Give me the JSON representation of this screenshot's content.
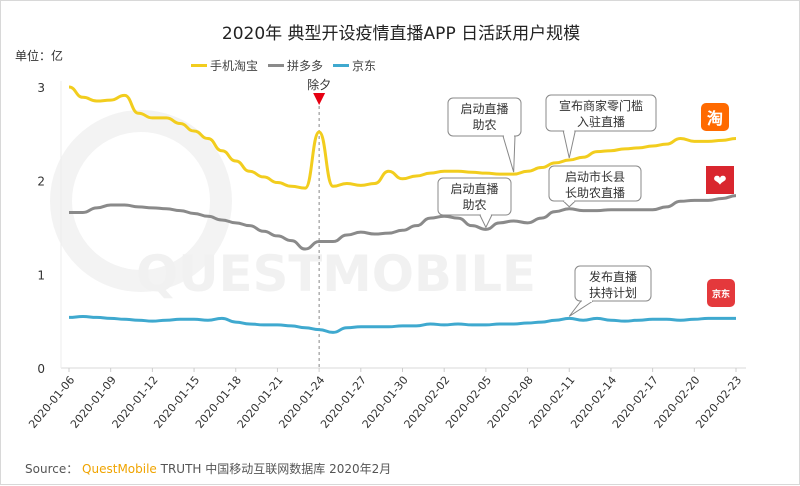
{
  "chart_data": {
    "type": "line",
    "title": "2020年 典型开设疫情直播APP 日活跃用户规模",
    "unit_label": "单位：亿",
    "ylim": [
      0,
      3
    ],
    "yticks": [
      0,
      1,
      2,
      3
    ],
    "grid": false,
    "legend_placement": "top",
    "x_start": "2020-01-06",
    "x": [
      "2020-01-06",
      "2020-01-07",
      "2020-01-08",
      "2020-01-09",
      "2020-01-10",
      "2020-01-11",
      "2020-01-12",
      "2020-01-13",
      "2020-01-14",
      "2020-01-15",
      "2020-01-16",
      "2020-01-17",
      "2020-01-18",
      "2020-01-19",
      "2020-01-20",
      "2020-01-21",
      "2020-01-22",
      "2020-01-23",
      "2020-01-24",
      "2020-01-25",
      "2020-01-26",
      "2020-01-27",
      "2020-01-28",
      "2020-01-29",
      "2020-01-30",
      "2020-01-31",
      "2020-02-01",
      "2020-02-02",
      "2020-02-03",
      "2020-02-04",
      "2020-02-05",
      "2020-02-06",
      "2020-02-07",
      "2020-02-08",
      "2020-02-09",
      "2020-02-10",
      "2020-02-11",
      "2020-02-12",
      "2020-02-13",
      "2020-02-14",
      "2020-02-15",
      "2020-02-16",
      "2020-02-17",
      "2020-02-18",
      "2020-02-19",
      "2020-02-20",
      "2020-02-21",
      "2020-02-22",
      "2020-02-23"
    ],
    "xtick_labels": [
      "2020-01-06",
      "2020-01-09",
      "2020-01-12",
      "2020-01-15",
      "2020-01-18",
      "2020-01-21",
      "2020-01-24",
      "2020-01-27",
      "2020-01-30",
      "2020-02-02",
      "2020-02-05",
      "2020-02-08",
      "2020-02-11",
      "2020-02-14",
      "2020-02-17",
      "2020-02-20",
      "2020-02-23"
    ],
    "series": [
      {
        "name": "手机淘宝",
        "color": "#f2cd1e",
        "values": [
          3.0,
          2.89,
          2.85,
          2.86,
          2.91,
          2.72,
          2.67,
          2.67,
          2.61,
          2.53,
          2.45,
          2.32,
          2.21,
          2.1,
          2.04,
          1.98,
          1.94,
          1.92,
          2.52,
          1.94,
          1.97,
          1.95,
          1.97,
          2.1,
          2.02,
          2.05,
          2.08,
          2.1,
          2.1,
          2.09,
          2.08,
          2.07,
          2.07,
          2.1,
          2.14,
          2.19,
          2.22,
          2.25,
          2.31,
          2.32,
          2.34,
          2.35,
          2.37,
          2.39,
          2.45,
          2.42,
          2.42,
          2.43,
          2.45
        ]
      },
      {
        "name": "拼多多",
        "color": "#8a8a8a",
        "values": [
          1.66,
          1.66,
          1.71,
          1.74,
          1.74,
          1.72,
          1.71,
          1.7,
          1.68,
          1.65,
          1.62,
          1.58,
          1.55,
          1.52,
          1.46,
          1.41,
          1.36,
          1.27,
          1.35,
          1.35,
          1.42,
          1.45,
          1.43,
          1.44,
          1.47,
          1.52,
          1.6,
          1.62,
          1.6,
          1.52,
          1.48,
          1.55,
          1.57,
          1.55,
          1.6,
          1.67,
          1.7,
          1.68,
          1.68,
          1.69,
          1.69,
          1.69,
          1.69,
          1.72,
          1.78,
          1.79,
          1.79,
          1.81,
          1.84
        ]
      },
      {
        "name": "京东",
        "color": "#3fa9cf",
        "values": [
          0.54,
          0.55,
          0.54,
          0.53,
          0.52,
          0.51,
          0.5,
          0.51,
          0.52,
          0.52,
          0.51,
          0.53,
          0.49,
          0.47,
          0.46,
          0.46,
          0.45,
          0.43,
          0.41,
          0.38,
          0.43,
          0.44,
          0.44,
          0.44,
          0.45,
          0.45,
          0.47,
          0.46,
          0.47,
          0.46,
          0.46,
          0.47,
          0.47,
          0.48,
          0.49,
          0.51,
          0.53,
          0.51,
          0.53,
          0.51,
          0.5,
          0.51,
          0.52,
          0.52,
          0.51,
          0.52,
          0.53,
          0.53,
          0.53
        ]
      }
    ],
    "annotations": [
      {
        "text": "除夕",
        "date": "2020-01-24",
        "marker": "red-triangle-dashed-line"
      },
      {
        "lines": [
          "启动直播",
          "助农"
        ],
        "series": "手机淘宝",
        "date": "2020-02-07"
      },
      {
        "lines": [
          "宣布商家零门槛",
          "入驻直播"
        ],
        "series": "手机淘宝",
        "date": "2020-02-11"
      },
      {
        "lines": [
          "启动直播",
          "助农"
        ],
        "series": "拼多多",
        "date": "2020-02-05"
      },
      {
        "lines": [
          "启动市长县",
          "长助农直播"
        ],
        "series": "拼多多",
        "date": "2020-02-11"
      },
      {
        "lines": [
          "发布直播",
          "扶持计划"
        ],
        "series": "京东",
        "date": "2020-02-11"
      }
    ]
  },
  "watermark": "QUESTMOBILE",
  "app_icons": [
    {
      "name": "taobao-icon",
      "glyph": "淘",
      "color": "#ff6a00"
    },
    {
      "name": "pinduoduo-icon",
      "glyph": "❤",
      "color": "#e02e24"
    },
    {
      "name": "jd-icon",
      "glyph": "京东",
      "color": "#e4393c"
    }
  ],
  "source": {
    "label": "Source：",
    "brand": "QuestMobile",
    "text": "TRUTH 中国移动互联网数据库 2020年2月"
  }
}
